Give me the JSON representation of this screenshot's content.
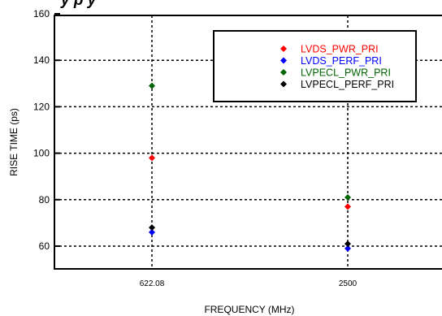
{
  "chart_data": {
    "type": "scatter",
    "title_fragment": "y  p  y",
    "xlabel": "FREQUENCY (MHz)",
    "ylabel": "RISE TIME (ps)",
    "ylim": [
      50,
      160
    ],
    "yticks": [
      60,
      80,
      100,
      120,
      140,
      160
    ],
    "categories": [
      "622.08",
      "2500"
    ],
    "grid": true,
    "grid_style": "dotted",
    "legend_position": "top-right",
    "series": [
      {
        "name": "LVDS_PWR_PRI",
        "color": "#ff0000",
        "values": [
          98,
          77
        ]
      },
      {
        "name": "LVDS_PERF_PRI",
        "color": "#0000ff",
        "values": [
          66,
          59
        ]
      },
      {
        "name": "LVPECL_PWR_PRI",
        "color": "#006400",
        "values": [
          129,
          81
        ]
      },
      {
        "name": "LVPECL_PERF_PRI",
        "color": "#000000",
        "values": [
          68,
          61
        ]
      }
    ]
  }
}
